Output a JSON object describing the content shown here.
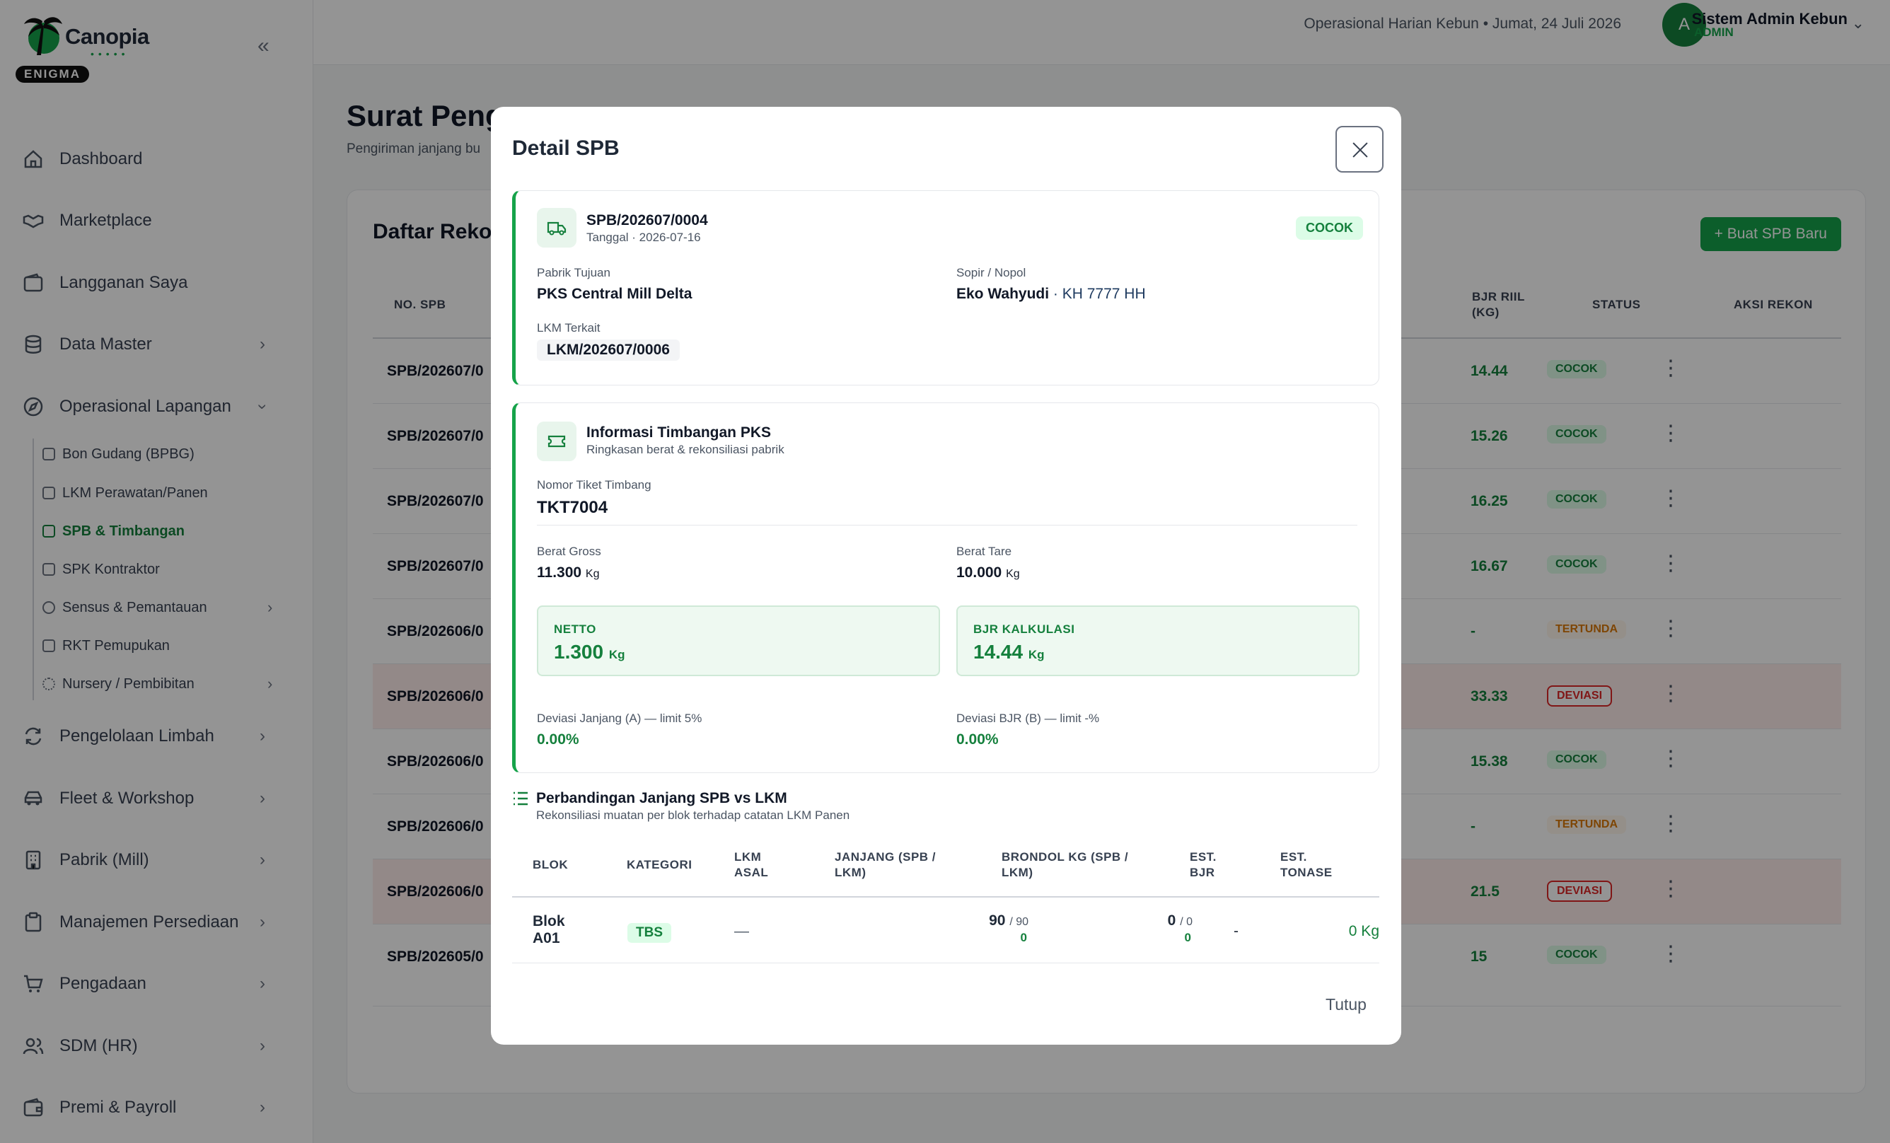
{
  "app": {
    "name": "Canopia",
    "badge": "ENIGMA"
  },
  "sidebar": {
    "items": [
      {
        "label": "Dashboard"
      },
      {
        "label": "Marketplace"
      },
      {
        "label": "Langganan Saya"
      },
      {
        "label": "Data Master"
      },
      {
        "label": "Operasional Lapangan"
      },
      {
        "label": "Pengelolaan Limbah"
      },
      {
        "label": "Fleet & Workshop"
      },
      {
        "label": "Pabrik (Mill)"
      },
      {
        "label": "Manajemen Persediaan"
      },
      {
        "label": "Pengadaan"
      },
      {
        "label": "SDM (HR)"
      },
      {
        "label": "Premi & Payroll"
      }
    ],
    "sub_items": [
      {
        "label": "Bon Gudang (BPBG)"
      },
      {
        "label": "LKM Perawatan/Panen"
      },
      {
        "label": "SPB & Timbangan"
      },
      {
        "label": "SPK Kontraktor"
      },
      {
        "label": "Sensus & Pemantauan"
      },
      {
        "label": "RKT Pemupukan"
      },
      {
        "label": "Nursery / Pembibitan"
      }
    ]
  },
  "topbar": {
    "context": "Operasional Harian Kebun  •  Jumat, 24 Juli 2026",
    "avatar_initial": "A",
    "user_name": "Sistem Admin Kebun",
    "user_role": "ADMIN"
  },
  "page": {
    "title": "Surat Peng",
    "subtitle": "Pengiriman janjang bu",
    "card_title": "Daftar Rekon",
    "new_button": "+ Buat SPB Baru",
    "columns": {
      "no": "NO. SPB",
      "bjr": "BJR RIIL (KG)",
      "status": "STATUS",
      "aksi": "AKSI REKON"
    },
    "rows": [
      {
        "no": "SPB/202607/0",
        "bjr": "14.44",
        "status": "COCOK"
      },
      {
        "no": "SPB/202607/0",
        "bjr": "15.26",
        "status": "COCOK"
      },
      {
        "no": "SPB/202607/0",
        "bjr": "16.25",
        "status": "COCOK"
      },
      {
        "no": "SPB/202607/0",
        "bjr": "16.67",
        "status": "COCOK"
      },
      {
        "no": "SPB/202606/0",
        "bjr": "-",
        "status": "TERTUNDA"
      },
      {
        "no": "SPB/202606/0",
        "bjr": "33.33",
        "status": "DEVIASI"
      },
      {
        "no": "SPB/202606/0",
        "bjr": "15.38",
        "status": "COCOK"
      },
      {
        "no": "SPB/202606/0",
        "bjr": "-",
        "status": "TERTUNDA"
      },
      {
        "no": "SPB/202606/0",
        "bjr": "21.5",
        "status": "DEVIASI"
      },
      {
        "no": "SPB/202605/0",
        "bjr": "15",
        "status": "COCOK"
      }
    ]
  },
  "modal": {
    "title": "Detail SPB",
    "spb_no": "SPB/202607/0004",
    "spb_date": "Tanggal · 2026-07-16",
    "status": "COCOK",
    "pabrik_label": "Pabrik Tujuan",
    "pabrik_value": "PKS Central Mill Delta",
    "sopir_label": "Sopir / Nopol",
    "sopir_name": "Eko Wahyudi",
    "sopir_nopol": " · KH 7777 HH",
    "lkm_label": "LKM Terkait",
    "lkm_value": "LKM/202607/0006",
    "timbang_title": "Informasi Timbangan PKS",
    "timbang_sub": "Ringkasan berat & rekonsiliasi pabrik",
    "tiket_label": "Nomor Tiket Timbang",
    "tiket_value": "TKT7004",
    "gross_label": "Berat Gross",
    "gross_value": "11.300",
    "tare_label": "Berat Tare",
    "tare_value": "10.000",
    "unit": "Kg",
    "netto_label": "NETTO",
    "netto_value": "1.300",
    "bjr_label": "BJR KALKULASI",
    "bjr_value": "14.44",
    "dev_a_label": "Deviasi Janjang (A) — limit 5%",
    "dev_a_value": "0.00%",
    "dev_b_label": "Deviasi BJR (B) — limit -%",
    "dev_b_value": "0.00%",
    "cmp_title": "Perbandingan Janjang SPB vs LKM",
    "cmp_sub": "Rekonsiliasi muatan per blok terhadap catatan LKM Panen",
    "cmp_columns": {
      "blok": "BLOK",
      "kategori": "KATEGORI",
      "lkm_asal_1": "LKM",
      "lkm_asal_2": "ASAL",
      "janjang_1": "JANJANG (SPB /",
      "janjang_2": "LKM)",
      "brondol_1": "BRONDOL KG (SPB /",
      "brondol_2": "LKM)",
      "bjr_1": "EST.",
      "bjr_2": "BJR",
      "ton_1": "EST.",
      "ton_2": "TONASE"
    },
    "cmp_row": {
      "blok_1": "Blok",
      "blok_2": "A01",
      "kategori": "TBS",
      "lkm_asal": "—",
      "janjang_spb": "90",
      "janjang_lkm": "/ 90",
      "janjang_diff": "0",
      "brondol_spb": "0",
      "brondol_lkm": "/ 0",
      "brondol_diff": "0",
      "est_bjr": "-",
      "est_tonase": "0 Kg"
    },
    "close_label": "Tutup"
  }
}
